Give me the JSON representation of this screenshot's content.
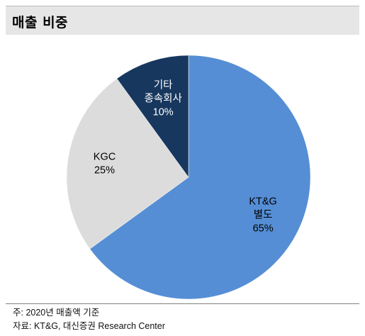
{
  "header": {
    "title": "매출 비중"
  },
  "chart_data": {
    "type": "pie",
    "title": "",
    "start_angle_deg": 0,
    "direction": "clockwise",
    "slices": [
      {
        "label_lines": [
          "KT&G",
          "별도",
          "65%"
        ],
        "name": "KT&G 별도",
        "value": 65,
        "color": "#558ed5",
        "text_color": "#000000"
      },
      {
        "label_lines": [
          "KGC",
          "25%"
        ],
        "name": "KGC",
        "value": 25,
        "color": "#dcdcdc",
        "text_color": "#000000"
      },
      {
        "label_lines": [
          "기타",
          "종속회사",
          "10%"
        ],
        "name": "기타 종속회사",
        "value": 10,
        "color": "#17375e",
        "text_color": "#ffffff"
      }
    ]
  },
  "footer": {
    "note": "주: 2020년 매출액 기준",
    "source": "자료: KT&G, 대신증권 Research Center"
  }
}
